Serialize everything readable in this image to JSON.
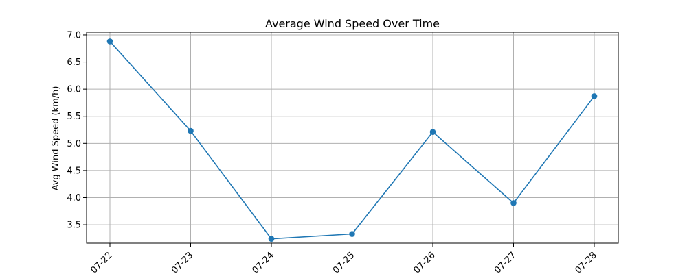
{
  "chart_data": {
    "type": "line",
    "title": "Average Wind Speed Over Time",
    "xlabel": "",
    "ylabel": "Avg Wind Speed (km/h)",
    "categories": [
      "07-22",
      "07-23",
      "07-24",
      "07-25",
      "07-26",
      "07-27",
      "07-28"
    ],
    "series": [
      {
        "values": [
          6.88,
          5.23,
          3.24,
          3.33,
          5.21,
          3.9,
          5.87
        ],
        "color": "#1f77b4"
      }
    ],
    "ylim": [
      3.16,
      7.05
    ],
    "yticks": [
      3.5,
      4.0,
      4.5,
      5.0,
      5.5,
      6.0,
      6.5,
      7.0
    ],
    "ytick_labels": [
      "3.5",
      "4.0",
      "4.5",
      "5.0",
      "5.5",
      "6.0",
      "6.5",
      "7.0"
    ],
    "grid": true,
    "marker": "circle"
  }
}
